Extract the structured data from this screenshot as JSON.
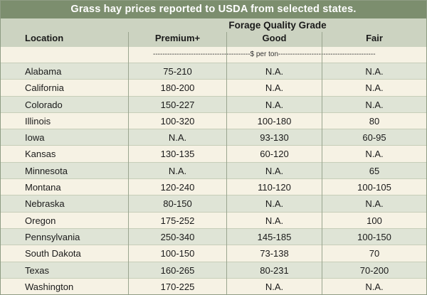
{
  "title": "Grass hay prices reported to USDA from selected states.",
  "group_label": "Forage Quality Grade",
  "columns": {
    "location": "Location",
    "premium": "Premium+",
    "good": "Good",
    "fair": "Fair"
  },
  "units": "-----------------------------------------$ per ton-----------------------------------------",
  "rows": [
    {
      "location": "Alabama",
      "premium": "75-210",
      "good": "N.A.",
      "fair": "N.A."
    },
    {
      "location": "California",
      "premium": "180-200",
      "good": "N.A.",
      "fair": "N.A."
    },
    {
      "location": "Colorado",
      "premium": "150-227",
      "good": "N.A.",
      "fair": "N.A."
    },
    {
      "location": "Illinois",
      "premium": "100-320",
      "good": "100-180",
      "fair": "80"
    },
    {
      "location": "Iowa",
      "premium": "N.A.",
      "good": "93-130",
      "fair": "60-95"
    },
    {
      "location": "Kansas",
      "premium": "130-135",
      "good": "60-120",
      "fair": "N.A."
    },
    {
      "location": "Minnesota",
      "premium": "N.A.",
      "good": "N.A.",
      "fair": "65"
    },
    {
      "location": "Montana",
      "premium": "120-240",
      "good": "110-120",
      "fair": "100-105"
    },
    {
      "location": "Nebraska",
      "premium": "80-150",
      "good": "N.A.",
      "fair": "N.A."
    },
    {
      "location": "Oregon",
      "premium": "175-252",
      "good": "N.A.",
      "fair": "100"
    },
    {
      "location": "Pennsylvania",
      "premium": "250-340",
      "good": "145-185",
      "fair": "100-150"
    },
    {
      "location": "South Dakota",
      "premium": "100-150",
      "good": "73-138",
      "fair": "70"
    },
    {
      "location": "Texas",
      "premium": "160-265",
      "good": "80-231",
      "fair": "70-200"
    },
    {
      "location": "Washington",
      "premium": "170-225",
      "good": "N.A.",
      "fair": "N.A."
    }
  ]
}
